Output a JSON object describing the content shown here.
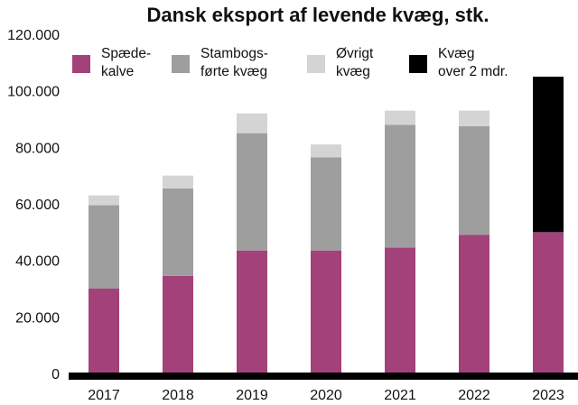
{
  "chart_data": {
    "type": "bar",
    "stacked": true,
    "title": "Dansk eksport af levende kvæg, stk.",
    "xlabel": "",
    "ylabel": "",
    "ylim": [
      0,
      120000
    ],
    "yticks": [
      0,
      20000,
      40000,
      60000,
      80000,
      100000,
      120000
    ],
    "ytick_labels": [
      "0",
      "20.000",
      "40.000",
      "60.000",
      "80.000",
      "100.000",
      "120.000"
    ],
    "categories": [
      "2017",
      "2018",
      "2019",
      "2020",
      "2021",
      "2022",
      "2023"
    ],
    "grid": false,
    "legend_position": "top",
    "series": [
      {
        "name": "Spædekalve",
        "legend_lines": [
          "Spæde-",
          "kalve"
        ],
        "color": "#a3417a",
        "values": [
          30000,
          34500,
          43500,
          43500,
          44500,
          49000,
          50000
        ]
      },
      {
        "name": "Stambogsførte kvæg",
        "legend_lines": [
          "Stambogs-",
          "førte kvæg"
        ],
        "color": "#9e9e9e",
        "values": [
          29500,
          31000,
          41500,
          33000,
          43500,
          38500,
          0
        ]
      },
      {
        "name": "Øvrigt kvæg",
        "legend_lines": [
          "Øvrigt",
          "kvæg"
        ],
        "color": "#d4d4d4",
        "values": [
          3500,
          4500,
          7000,
          4500,
          5000,
          5500,
          0
        ]
      },
      {
        "name": "Kvæg over 2 mdr.",
        "legend_lines": [
          "Kvæg",
          "over 2 mdr."
        ],
        "color": "#000000",
        "values": [
          0,
          0,
          0,
          0,
          0,
          0,
          55000
        ]
      }
    ]
  }
}
